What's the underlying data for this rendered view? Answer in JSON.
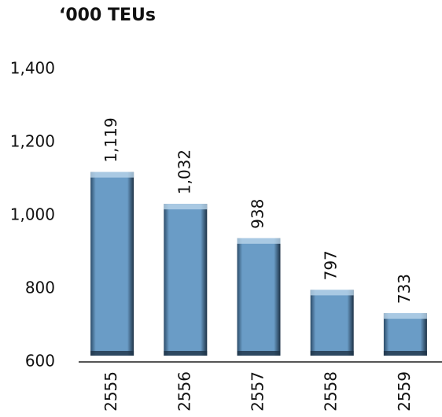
{
  "chart_data": {
    "type": "bar",
    "title": "‘000 TEUs",
    "categories": [
      "2555",
      "2556",
      "2557",
      "2558",
      "2559"
    ],
    "values": [
      1119,
      1032,
      938,
      797,
      733
    ],
    "value_labels": [
      "1,119",
      "1,032",
      "938",
      "797",
      "733"
    ],
    "color": "#6a9cc6",
    "ylim": [
      600,
      1400
    ],
    "yticks": [
      600,
      800,
      {
        "value": 1000,
        "label": "1,000"
      },
      {
        "value": 1200,
        "label": "1,200"
      },
      {
        "value": 1400,
        "label": "1,400"
      }
    ],
    "grid": false
  }
}
